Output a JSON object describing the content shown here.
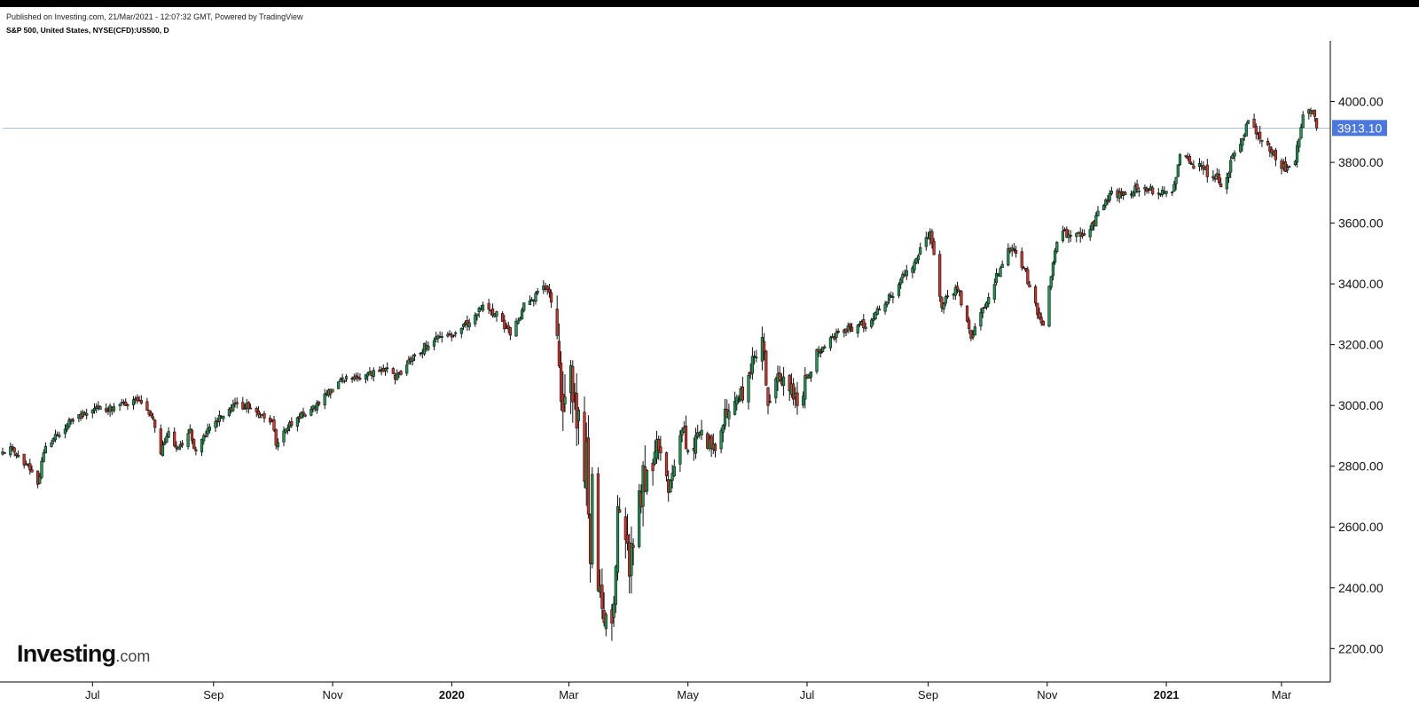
{
  "header": {
    "published": "Published on Investing.com, 21/Mar/2021 - 12:07:32 GMT, Powered by TradingView",
    "symbol": "S&P 500, United States, NYSE(CFD):US500, D"
  },
  "logo": {
    "main": "Investing",
    "suffix": ".com"
  },
  "colors": {
    "up": "#1a9850",
    "down": "#d73027",
    "price_line": "#4a78e0",
    "price_badge": "#4a78e0",
    "axis": "#000000"
  },
  "chart_data": {
    "type": "candlestick",
    "ylim": [
      2090,
      4200
    ],
    "yticks": [
      2200,
      2400,
      2600,
      2800,
      3000,
      3200,
      3400,
      3600,
      3800,
      4000
    ],
    "ytick_labels": [
      "2200.00",
      "2400.00",
      "2600.00",
      "2800.00",
      "3000.00",
      "3200.00",
      "3400.00",
      "3600.00",
      "3800.00",
      "4000.00"
    ],
    "xlim": [
      "2019-05-16",
      "2021-03-26"
    ],
    "xticks": [
      {
        "date": "2019-07-01",
        "label": "Jul",
        "bold": false
      },
      {
        "date": "2019-09-01",
        "label": "Sep",
        "bold": false
      },
      {
        "date": "2019-11-01",
        "label": "Nov",
        "bold": false
      },
      {
        "date": "2020-01-01",
        "label": "2020",
        "bold": true
      },
      {
        "date": "2020-03-01",
        "label": "Mar",
        "bold": false
      },
      {
        "date": "2020-05-01",
        "label": "May",
        "bold": false
      },
      {
        "date": "2020-07-01",
        "label": "Jul",
        "bold": false
      },
      {
        "date": "2020-09-01",
        "label": "Sep",
        "bold": false
      },
      {
        "date": "2020-11-01",
        "label": "Nov",
        "bold": false
      },
      {
        "date": "2021-01-01",
        "label": "2021",
        "bold": true
      },
      {
        "date": "2021-03-01",
        "label": "Mar",
        "bold": false
      }
    ],
    "last_price": 3913.1,
    "last_price_label": "3913.10",
    "anchors": [
      [
        "2019-05-16",
        2840
      ],
      [
        "2019-05-20",
        2860
      ],
      [
        "2019-05-28",
        2805
      ],
      [
        "2019-06-03",
        2745
      ],
      [
        "2019-06-07",
        2870
      ],
      [
        "2019-06-20",
        2950
      ],
      [
        "2019-07-03",
        2995
      ],
      [
        "2019-07-10",
        2990
      ],
      [
        "2019-07-15",
        3010
      ],
      [
        "2019-07-26",
        3020
      ],
      [
        "2019-08-02",
        2940
      ],
      [
        "2019-08-05",
        2845
      ],
      [
        "2019-08-09",
        2910
      ],
      [
        "2019-08-14",
        2850
      ],
      [
        "2019-08-20",
        2910
      ],
      [
        "2019-08-23",
        2850
      ],
      [
        "2019-08-30",
        2925
      ],
      [
        "2019-09-12",
        3005
      ],
      [
        "2019-09-20",
        2995
      ],
      [
        "2019-10-01",
        2945
      ],
      [
        "2019-10-03",
        2880
      ],
      [
        "2019-10-10",
        2940
      ],
      [
        "2019-10-25",
        3010
      ],
      [
        "2019-11-08",
        3090
      ],
      [
        "2019-11-20",
        3110
      ],
      [
        "2019-12-02",
        3115
      ],
      [
        "2019-12-03",
        3095
      ],
      [
        "2019-12-13",
        3165
      ],
      [
        "2019-12-27",
        3240
      ],
      [
        "2020-01-03",
        3235
      ],
      [
        "2020-01-17",
        3320
      ],
      [
        "2020-01-24",
        3300
      ],
      [
        "2020-01-31",
        3230
      ],
      [
        "2020-02-07",
        3330
      ],
      [
        "2020-02-19",
        3390
      ],
      [
        "2020-02-21",
        3350
      ],
      [
        "2020-02-24",
        3230
      ],
      [
        "2020-02-27",
        3000
      ],
      [
        "2020-03-02",
        3090
      ],
      [
        "2020-03-06",
        2950
      ],
      [
        "2020-03-10",
        2890
      ],
      [
        "2020-03-12",
        2480
      ],
      [
        "2020-03-13",
        2720
      ],
      [
        "2020-03-16",
        2390
      ],
      [
        "2020-03-20",
        2310
      ],
      [
        "2020-03-23",
        2240
      ],
      [
        "2020-03-26",
        2620
      ],
      [
        "2020-04-01",
        2470
      ],
      [
        "2020-04-08",
        2750
      ],
      [
        "2020-04-17",
        2870
      ],
      [
        "2020-04-21",
        2740
      ],
      [
        "2020-04-29",
        2930
      ],
      [
        "2020-05-01",
        2830
      ],
      [
        "2020-05-08",
        2920
      ],
      [
        "2020-05-14",
        2850
      ],
      [
        "2020-05-20",
        2970
      ],
      [
        "2020-05-29",
        3040
      ],
      [
        "2020-06-08",
        3230
      ],
      [
        "2020-06-11",
        3000
      ],
      [
        "2020-06-16",
        3120
      ],
      [
        "2020-06-26",
        3010
      ],
      [
        "2020-07-06",
        3170
      ],
      [
        "2020-07-20",
        3250
      ],
      [
        "2020-07-31",
        3270
      ],
      [
        "2020-08-14",
        3370
      ],
      [
        "2020-08-28",
        3505
      ],
      [
        "2020-09-02",
        3580
      ],
      [
        "2020-09-08",
        3330
      ],
      [
        "2020-09-16",
        3390
      ],
      [
        "2020-09-23",
        3230
      ],
      [
        "2020-10-02",
        3350
      ],
      [
        "2020-10-12",
        3530
      ],
      [
        "2020-10-20",
        3450
      ],
      [
        "2020-10-28",
        3290
      ],
      [
        "2020-10-30",
        3270
      ],
      [
        "2020-11-05",
        3510
      ],
      [
        "2020-11-09",
        3570
      ],
      [
        "2020-11-20",
        3560
      ],
      [
        "2020-12-04",
        3690
      ],
      [
        "2020-12-18",
        3710
      ],
      [
        "2021-01-04",
        3700
      ],
      [
        "2021-01-08",
        3820
      ],
      [
        "2021-01-27",
        3750
      ],
      [
        "2021-01-29",
        3715
      ],
      [
        "2021-02-12",
        3930
      ],
      [
        "2021-02-25",
        3830
      ],
      [
        "2021-03-04",
        3770
      ],
      [
        "2021-03-08",
        3820
      ],
      [
        "2021-03-12",
        3945
      ],
      [
        "2021-03-17",
        3975
      ],
      [
        "2021-03-19",
        3913
      ]
    ],
    "drops": [
      [
        "2020-02-24",
        3230
      ],
      [
        "2020-02-25",
        3130
      ],
      [
        "2020-02-27",
        2980
      ],
      [
        "2020-03-09",
        2750
      ],
      [
        "2020-03-12",
        2480
      ],
      [
        "2020-03-16",
        2390
      ],
      [
        "2020-06-11",
        3000
      ]
    ]
  }
}
